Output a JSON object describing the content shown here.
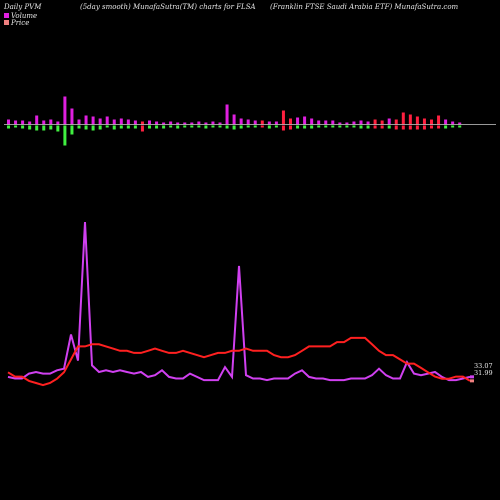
{
  "header": {
    "left": "Daily PVM",
    "middle": "(5day smooth) MunafaSutra(TM) charts for FLSA",
    "right": "(Franklin FTSE Saudi Arabia ETF) MunafaSutra.com"
  },
  "legend": {
    "volume": "Volume",
    "price": "Price"
  },
  "colors": {
    "background": "#000000",
    "volume_up": "#e020e0",
    "volume_down": "#40f040",
    "volume_down_red": "#ff2040",
    "baseline": "#cccccc",
    "price_line": "#ff2020",
    "volume_line": "#d040f0",
    "price_marker": "#f08080"
  },
  "chart_data": {
    "type": "line",
    "title": "",
    "xlabel": "",
    "ylabel": "",
    "grid": false,
    "legend_placement": "top-left",
    "value_labels": [
      "33.07",
      "31.99"
    ],
    "bars": {
      "up": [
        5,
        4,
        4,
        3,
        9,
        4,
        5,
        3,
        28,
        16,
        5,
        9,
        8,
        6,
        8,
        5,
        6,
        5,
        4,
        3,
        4,
        3,
        2,
        3,
        2,
        2,
        2,
        3,
        2,
        3,
        2,
        20,
        10,
        6,
        5,
        4,
        4,
        3,
        3,
        14,
        6,
        7,
        8,
        6,
        4,
        4,
        4,
        2,
        2,
        3,
        4,
        3,
        5,
        4,
        6,
        5,
        12,
        10,
        8,
        6,
        5,
        9,
        5,
        3,
        2
      ],
      "down": [
        3,
        2,
        3,
        4,
        5,
        5,
        4,
        6,
        20,
        9,
        3,
        4,
        5,
        4,
        2,
        4,
        3,
        3,
        3,
        6,
        3,
        3,
        3,
        2,
        3,
        2,
        2,
        2,
        3,
        2,
        2,
        3,
        4,
        3,
        2,
        2,
        2,
        3,
        2,
        5,
        4,
        3,
        3,
        3,
        2,
        2,
        2,
        2,
        2,
        2,
        3,
        3,
        3,
        3,
        3,
        4,
        4,
        4,
        4,
        4,
        3,
        3,
        3,
        2,
        2
      ],
      "down_red_index": [
        19,
        36,
        39,
        40,
        52,
        53,
        55,
        56,
        57,
        58,
        59,
        60,
        61
      ]
    },
    "series": [
      {
        "values": [
          70,
          72,
          72,
          74,
          75,
          76,
          75,
          73,
          70,
          64,
          58,
          58,
          57,
          57,
          58,
          59,
          60,
          60,
          61,
          61,
          60,
          59,
          60,
          61,
          61,
          60,
          61,
          62,
          63,
          62,
          61,
          61,
          60,
          60,
          59,
          60,
          60,
          60,
          62,
          63,
          63,
          62,
          60,
          58,
          58,
          58,
          58,
          56,
          56,
          54,
          54,
          54,
          57,
          60,
          62,
          62,
          64,
          66,
          66,
          68,
          70,
          72,
          73,
          73,
          72,
          72,
          74
        ]
      },
      {
        "values": [
          5,
          4,
          4,
          7,
          8,
          7,
          7,
          9,
          10,
          31,
          15,
          13,
          12,
          8,
          9,
          8,
          9,
          8,
          7,
          8,
          5,
          6,
          9,
          5,
          4,
          4,
          7,
          5,
          3,
          3,
          3,
          11,
          5,
          6,
          6,
          4,
          4,
          3,
          4,
          4,
          4,
          7,
          9,
          5,
          4,
          4,
          3,
          3,
          3,
          4,
          4,
          4,
          6,
          10,
          6,
          4,
          4,
          14,
          7,
          6,
          7,
          8,
          5,
          3,
          3,
          4,
          5
        ]
      }
    ],
    "vol_peaks": [
      {
        "index": 11,
        "value": 100
      },
      {
        "index": 33,
        "value": 73
      }
    ]
  }
}
